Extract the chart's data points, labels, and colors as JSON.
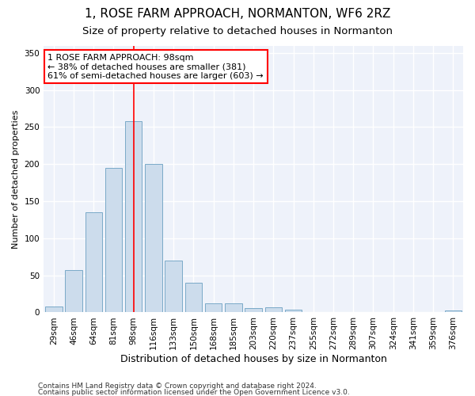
{
  "title1": "1, ROSE FARM APPROACH, NORMANTON, WF6 2RZ",
  "title2": "Size of property relative to detached houses in Normanton",
  "xlabel": "Distribution of detached houses by size in Normanton",
  "ylabel": "Number of detached properties",
  "categories": [
    "29sqm",
    "46sqm",
    "64sqm",
    "81sqm",
    "98sqm",
    "116sqm",
    "133sqm",
    "150sqm",
    "168sqm",
    "185sqm",
    "203sqm",
    "220sqm",
    "237sqm",
    "255sqm",
    "272sqm",
    "289sqm",
    "307sqm",
    "324sqm",
    "341sqm",
    "359sqm",
    "376sqm"
  ],
  "values": [
    8,
    57,
    135,
    195,
    258,
    200,
    70,
    40,
    12,
    12,
    6,
    7,
    4,
    0,
    0,
    0,
    0,
    0,
    0,
    0,
    3
  ],
  "bar_color": "#ccdcec",
  "bar_edge_color": "#7aaac8",
  "red_line_x": 4.5,
  "annotation_text": "1 ROSE FARM APPROACH: 98sqm\n← 38% of detached houses are smaller (381)\n61% of semi-detached houses are larger (603) →",
  "annotation_box_color": "white",
  "annotation_box_edge_color": "red",
  "ylim": [
    0,
    360
  ],
  "yticks": [
    0,
    50,
    100,
    150,
    200,
    250,
    300,
    350
  ],
  "background_color": "#eef2fa",
  "grid_color": "white",
  "footer1": "Contains HM Land Registry data © Crown copyright and database right 2024.",
  "footer2": "Contains public sector information licensed under the Open Government Licence v3.0.",
  "title1_fontsize": 11,
  "title2_fontsize": 9.5,
  "xlabel_fontsize": 9,
  "ylabel_fontsize": 8,
  "tick_fontsize": 7.5,
  "annotation_fontsize": 8,
  "footer_fontsize": 6.5
}
